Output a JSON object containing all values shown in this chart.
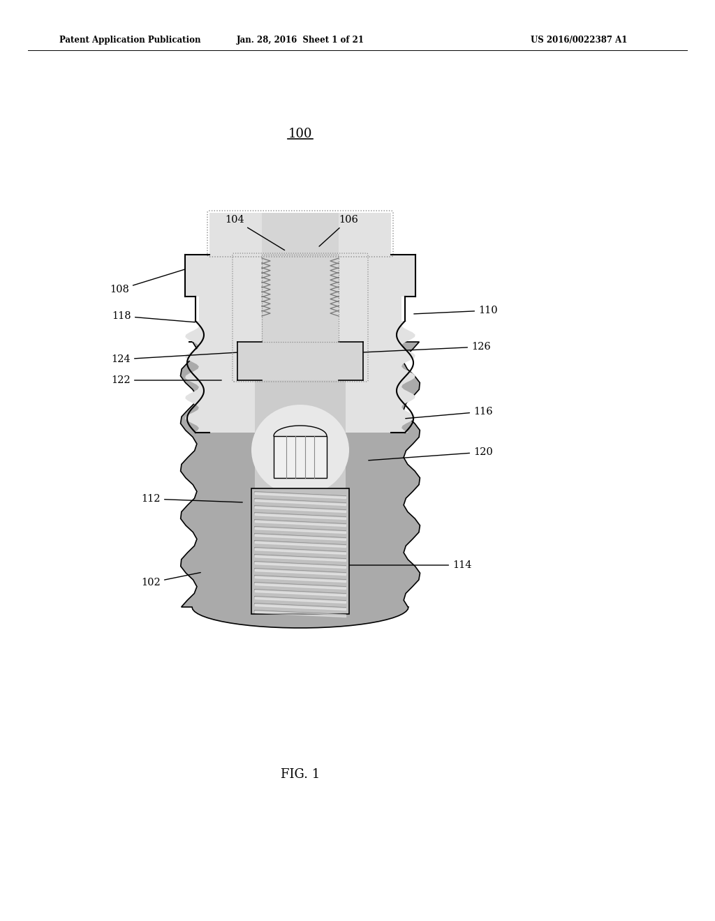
{
  "title_header_left": "Patent Application Publication",
  "title_header_mid": "Jan. 28, 2016  Sheet 1 of 21",
  "title_header_right": "US 2016/0022387 A1",
  "label_100": "100",
  "label_104": "104",
  "label_106": "106",
  "label_108": "108",
  "label_110": "110",
  "label_112": "112",
  "label_114": "114",
  "label_116": "116",
  "label_118": "118",
  "label_120": "120",
  "label_122": "122",
  "label_124": "124",
  "label_126": "126",
  "label_102": "102",
  "fig_label": "FIG. 1",
  "bg_color": "#ffffff",
  "line_color": "#000000",
  "gray_light": "#d8d8d8",
  "gray_medium": "#b8b8b8",
  "gray_dark": "#909090",
  "gray_tissue": "#aaaaaa"
}
